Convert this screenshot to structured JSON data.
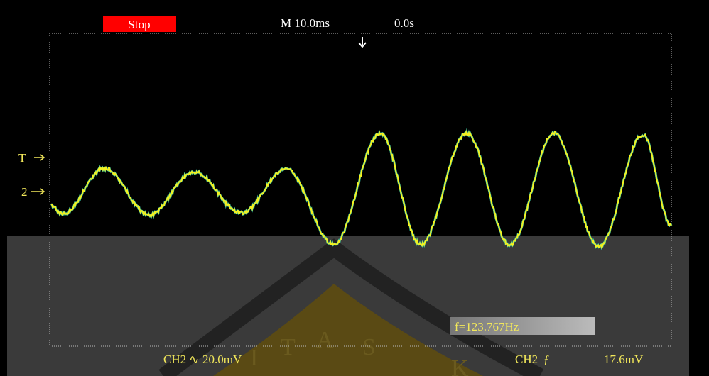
{
  "status": "Stop",
  "timebase": "M 10.0ms",
  "delay": "0.0s",
  "left_markers": {
    "trigger": "T",
    "channel": "2"
  },
  "frequency": "f=123.767Hz",
  "footer": {
    "channel_scale": "CH2",
    "coupling": "∿",
    "volts_div": "20.0mV",
    "trigger_source": "CH2",
    "trigger_slope": "ƒ",
    "trigger_level": "17.6mV"
  },
  "watermark": {
    "letters": [
      "I",
      "T",
      "A",
      "S",
      "K"
    ]
  }
}
